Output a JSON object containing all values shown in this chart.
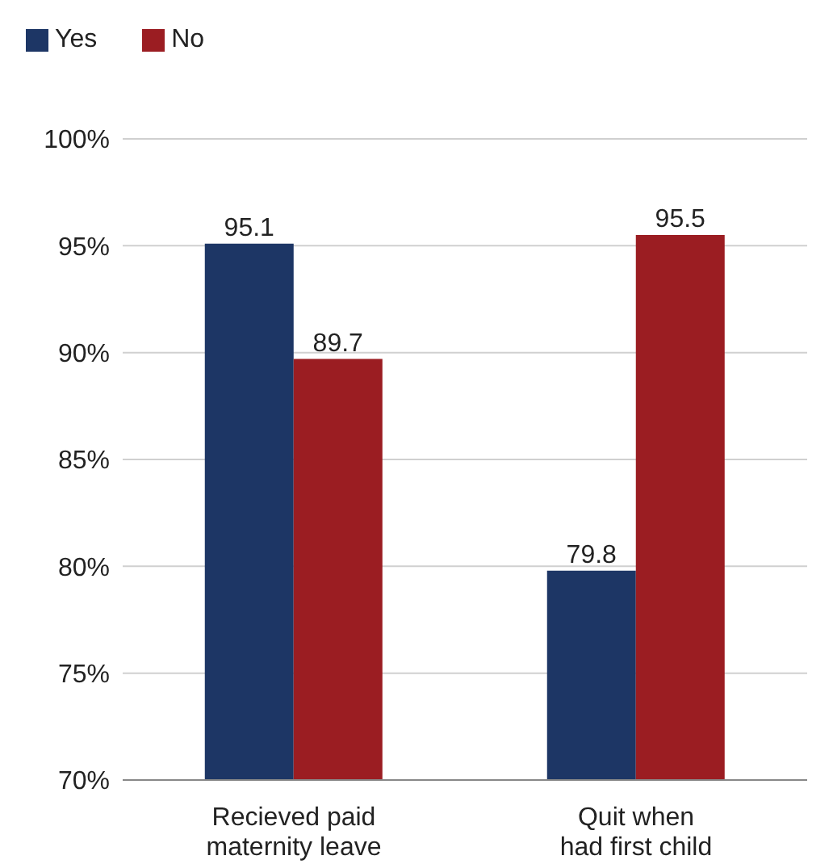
{
  "chart_data": {
    "type": "bar",
    "categories": [
      "Recieved paid\nmaternity leave",
      "Quit when\nhad first child"
    ],
    "series": [
      {
        "name": "Yes",
        "color": "#1d3665",
        "values": [
          95.1,
          79.8
        ]
      },
      {
        "name": "No",
        "color": "#9b1d22",
        "values": [
          89.7,
          95.5
        ]
      }
    ],
    "ylim": [
      70,
      100
    ],
    "yticks": [
      {
        "value": 70,
        "label": "70%"
      },
      {
        "value": 75,
        "label": "75%"
      },
      {
        "value": 80,
        "label": "80%"
      },
      {
        "value": 85,
        "label": "85%"
      },
      {
        "value": 90,
        "label": "90%"
      },
      {
        "value": 95,
        "label": "95%"
      },
      {
        "value": 100,
        "label": "100%"
      }
    ],
    "grid": "y",
    "legend": "top left",
    "data_labels": true
  }
}
